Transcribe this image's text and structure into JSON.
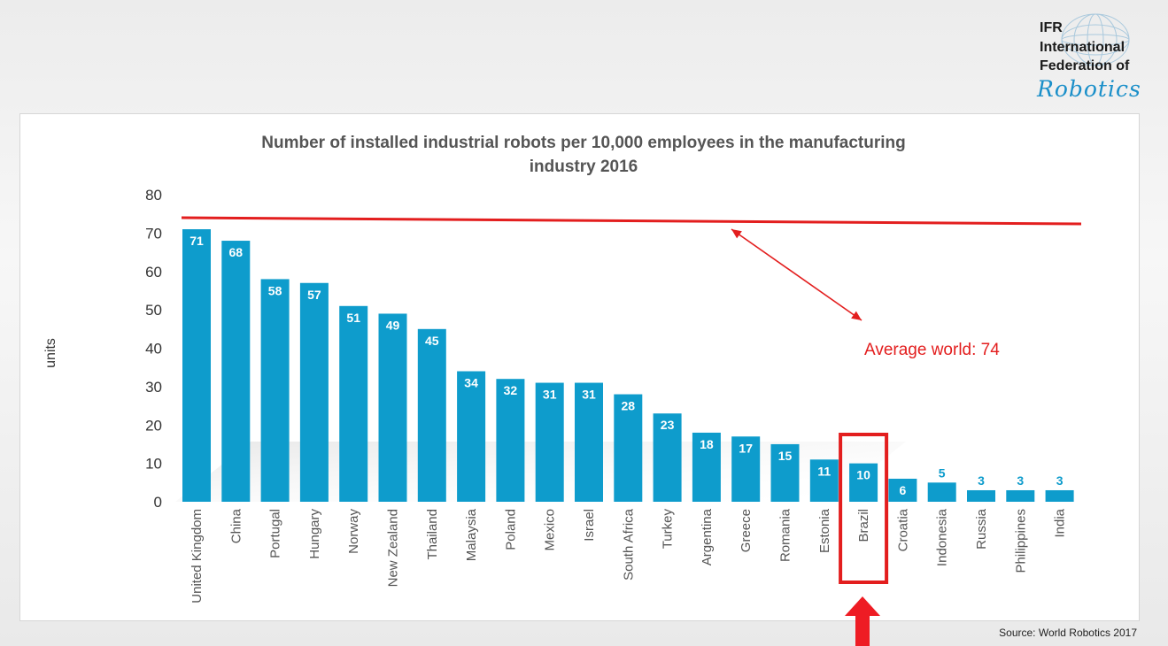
{
  "logo": {
    "line1": "IFR",
    "line2": "International",
    "line3": "Federation of",
    "script": "Robotics"
  },
  "source": "Source: World Robotics 2017",
  "colors": {
    "bar": "#0e9ccc",
    "average": "#e31e1e",
    "highlight": "#e31e1e",
    "text": "#555555"
  },
  "chart_data": {
    "type": "bar",
    "title_line1": "Number of installed industrial robots per 10,000 employees in the manufacturing",
    "title_line2": "industry 2016",
    "ylabel": "units",
    "ylim": [
      0,
      80
    ],
    "yticks": [
      0,
      10,
      20,
      30,
      40,
      50,
      60,
      70,
      80
    ],
    "grid": false,
    "categories": [
      "United Kingdom",
      "China",
      "Portugal",
      "Hungary",
      "Norway",
      "New Zealand",
      "Thailand",
      "Malaysia",
      "Poland",
      "Mexico",
      "Israel",
      "South Africa",
      "Turkey",
      "Argentina",
      "Greece",
      "Romania",
      "Estonia",
      "Brazil",
      "Croatia",
      "Indonesia",
      "Russia",
      "Philippines",
      "India"
    ],
    "values": [
      71,
      68,
      58,
      57,
      51,
      49,
      45,
      34,
      32,
      31,
      31,
      28,
      23,
      18,
      17,
      15,
      11,
      10,
      6,
      5,
      3,
      3,
      3
    ],
    "average": {
      "label": "Average world: 74",
      "value": 74
    },
    "highlight": "Brazil"
  }
}
